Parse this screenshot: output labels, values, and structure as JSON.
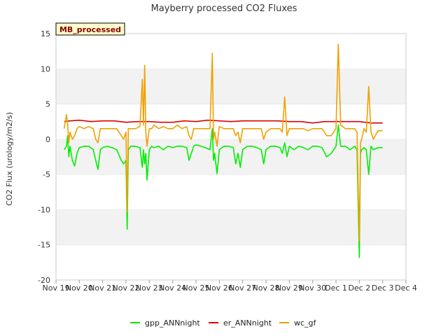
{
  "chart_data": {
    "type": "line",
    "title": "Mayberry processed CO2 Fluxes",
    "ylabel": "CO2 Flux (urology/m2/s)",
    "xlabel": "",
    "badge": "MB_processed",
    "ylim": [
      -20,
      15
    ],
    "yticks": [
      -20,
      -15,
      -10,
      -5,
      0,
      5,
      10,
      15
    ],
    "xlim": [
      0,
      15
    ],
    "xticks": [
      {
        "x": 0,
        "label": "Nov 19"
      },
      {
        "x": 1,
        "label": "Nov 20"
      },
      {
        "x": 2,
        "label": "Nov 21"
      },
      {
        "x": 3,
        "label": "Nov 22"
      },
      {
        "x": 4,
        "label": "Nov 23"
      },
      {
        "x": 5,
        "label": "Nov 24"
      },
      {
        "x": 6,
        "label": "Nov 25"
      },
      {
        "x": 7,
        "label": "Nov 26"
      },
      {
        "x": 8,
        "label": "Nov 27"
      },
      {
        "x": 9,
        "label": "Nov 28"
      },
      {
        "x": 10,
        "label": "Nov 29"
      },
      {
        "x": 11,
        "label": "Nov 30"
      },
      {
        "x": 12,
        "label": "Dec 1"
      },
      {
        "x": 13,
        "label": "Dec 2"
      },
      {
        "x": 14,
        "label": "Dec 3"
      },
      {
        "x": 15,
        "label": "Dec 4"
      }
    ],
    "grid": "horizontal bands",
    "legend": "bottom",
    "series": [
      {
        "name": "gpp_ANNnight",
        "color": "#00ee00",
        "x": [
          0.35,
          0.45,
          0.5,
          0.55,
          0.6,
          0.7,
          0.8,
          0.9,
          1.0,
          1.2,
          1.4,
          1.6,
          1.7,
          1.8,
          1.9,
          2.0,
          2.2,
          2.4,
          2.6,
          2.8,
          2.9,
          3.0,
          3.05,
          3.1,
          3.2,
          3.4,
          3.6,
          3.7,
          3.75,
          3.8,
          3.85,
          3.9,
          4.0,
          4.1,
          4.2,
          4.4,
          4.6,
          4.8,
          5.0,
          5.2,
          5.4,
          5.6,
          5.7,
          5.8,
          5.9,
          6.0,
          6.2,
          6.4,
          6.6,
          6.7,
          6.75,
          6.8,
          6.9,
          7.0,
          7.2,
          7.4,
          7.6,
          7.7,
          7.8,
          7.9,
          8.0,
          8.2,
          8.4,
          8.6,
          8.8,
          8.9,
          9.0,
          9.2,
          9.4,
          9.6,
          9.7,
          9.8,
          9.9,
          10.0,
          10.2,
          10.4,
          10.6,
          10.8,
          11.0,
          11.2,
          11.4,
          11.6,
          11.8,
          12.0,
          12.1,
          12.2,
          12.4,
          12.6,
          12.8,
          12.9,
          13.0,
          13.05,
          13.1,
          13.2,
          13.3,
          13.4,
          13.5,
          13.6,
          13.8,
          14.0
        ],
        "values": [
          -1.5,
          -1.0,
          0.5,
          -2.5,
          -1.0,
          -3.0,
          -3.8,
          -2.0,
          -1.2,
          -1.0,
          -1.0,
          -1.5,
          -3.0,
          -4.3,
          -1.5,
          -1.2,
          -1.0,
          -1.2,
          -1.5,
          -3.0,
          -3.5,
          -3.0,
          -12.8,
          -1.5,
          -1.0,
          -1.0,
          -1.2,
          -4.0,
          -1.5,
          -3.5,
          -2.0,
          -5.8,
          -1.5,
          -1.0,
          -1.2,
          -1.0,
          -1.5,
          -1.0,
          -1.2,
          -1.0,
          -1.0,
          -1.2,
          -3.0,
          -2.0,
          -1.0,
          -0.8,
          -1.0,
          -1.2,
          -1.5,
          1.5,
          -3.0,
          -2.0,
          -4.9,
          -1.5,
          -1.0,
          -1.0,
          -1.2,
          -3.5,
          -2.0,
          -4.0,
          -1.5,
          -1.0,
          -1.0,
          -1.2,
          -1.5,
          -3.5,
          -1.5,
          -1.0,
          -1.0,
          -1.2,
          -2.0,
          -0.5,
          -2.5,
          -1.0,
          -1.5,
          -1.0,
          -1.2,
          -1.5,
          -1.0,
          -1.0,
          -1.2,
          -2.5,
          -2.0,
          -1.0,
          2.0,
          -1.0,
          -1.0,
          -1.5,
          -1.0,
          -1.5,
          -16.8,
          -2.0,
          -1.5,
          -1.2,
          -1.5,
          -5.0,
          -1.0,
          -1.5,
          -1.2,
          -1.2
        ]
      },
      {
        "name": "er_ANNnight",
        "color": "#dd0000",
        "x": [
          0.35,
          0.6,
          1.0,
          1.5,
          2.0,
          2.5,
          3.0,
          3.5,
          4.0,
          4.5,
          5.0,
          5.5,
          6.0,
          6.5,
          7.0,
          7.5,
          8.0,
          8.5,
          9.0,
          9.5,
          10.0,
          10.5,
          11.0,
          11.5,
          12.0,
          12.5,
          13.0,
          13.5,
          14.0
        ],
        "values": [
          2.5,
          2.6,
          2.7,
          2.5,
          2.6,
          2.6,
          2.4,
          2.5,
          2.5,
          2.4,
          2.4,
          2.6,
          2.5,
          2.7,
          2.6,
          2.5,
          2.6,
          2.6,
          2.6,
          2.6,
          2.5,
          2.5,
          2.3,
          2.5,
          2.5,
          2.5,
          2.5,
          2.3,
          2.3
        ]
      },
      {
        "name": "wc_gf",
        "color": "#f0a000",
        "x": [
          0.35,
          0.45,
          0.5,
          0.55,
          0.6,
          0.7,
          0.8,
          0.9,
          1.0,
          1.2,
          1.4,
          1.6,
          1.7,
          1.8,
          1.9,
          2.0,
          2.2,
          2.4,
          2.6,
          2.8,
          2.9,
          3.0,
          3.05,
          3.1,
          3.2,
          3.4,
          3.6,
          3.7,
          3.75,
          3.8,
          3.85,
          3.9,
          4.0,
          4.1,
          4.2,
          4.4,
          4.6,
          4.8,
          5.0,
          5.2,
          5.4,
          5.6,
          5.7,
          5.8,
          5.9,
          6.0,
          6.2,
          6.4,
          6.6,
          6.7,
          6.75,
          6.8,
          6.9,
          7.0,
          7.2,
          7.4,
          7.6,
          7.7,
          7.8,
          7.9,
          8.0,
          8.2,
          8.4,
          8.6,
          8.8,
          8.9,
          9.0,
          9.2,
          9.4,
          9.6,
          9.7,
          9.8,
          9.9,
          10.0,
          10.2,
          10.4,
          10.6,
          10.8,
          11.0,
          11.2,
          11.4,
          11.6,
          11.8,
          12.0,
          12.1,
          12.2,
          12.4,
          12.6,
          12.8,
          12.9,
          13.0,
          13.05,
          13.1,
          13.2,
          13.3,
          13.4,
          13.5,
          13.6,
          13.8,
          14.0
        ],
        "values": [
          1.5,
          3.5,
          2.0,
          -0.5,
          1.0,
          0.0,
          0.5,
          1.5,
          1.8,
          1.5,
          1.8,
          1.5,
          0.0,
          -0.5,
          1.5,
          1.5,
          1.5,
          1.5,
          1.5,
          0.5,
          0.0,
          1.0,
          -10.3,
          1.5,
          1.5,
          1.5,
          1.8,
          8.5,
          2.0,
          10.5,
          1.0,
          -1.0,
          1.5,
          1.5,
          2.0,
          1.5,
          1.8,
          1.5,
          1.5,
          2.0,
          1.5,
          1.8,
          0.5,
          0.0,
          1.5,
          1.5,
          1.5,
          1.5,
          1.5,
          12.2,
          0.0,
          1.0,
          -1.0,
          1.8,
          1.5,
          1.5,
          1.5,
          0.5,
          1.0,
          -0.5,
          1.5,
          1.5,
          1.5,
          1.5,
          1.5,
          0.0,
          1.0,
          1.5,
          1.5,
          1.5,
          1.0,
          6.0,
          0.5,
          1.5,
          1.5,
          1.5,
          1.5,
          1.2,
          1.5,
          1.5,
          1.5,
          0.5,
          0.5,
          1.5,
          13.5,
          2.0,
          1.5,
          1.5,
          1.5,
          1.0,
          -14.5,
          -0.5,
          0.0,
          1.5,
          1.0,
          7.5,
          1.0,
          0.0,
          1.2,
          1.2
        ]
      }
    ]
  }
}
